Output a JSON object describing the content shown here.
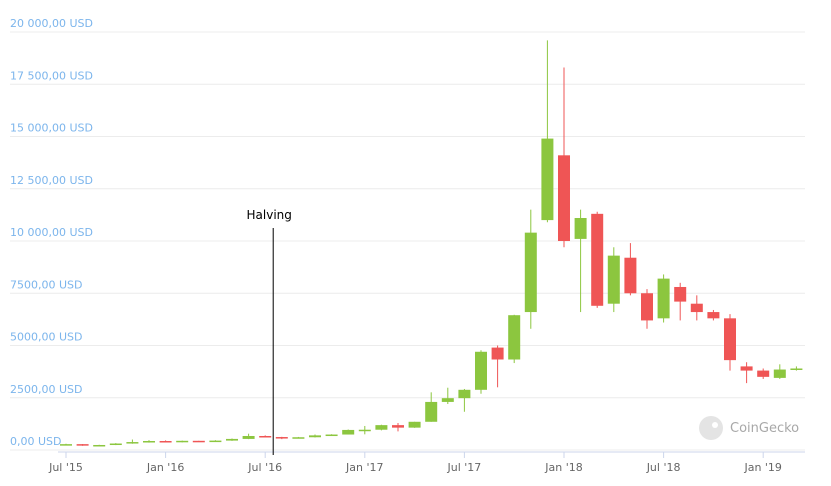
{
  "chart_data": {
    "type": "candlestick",
    "x": [
      "2015-07",
      "2015-08",
      "2015-09",
      "2015-10",
      "2015-11",
      "2015-12",
      "2016-01",
      "2016-02",
      "2016-03",
      "2016-04",
      "2016-05",
      "2016-06",
      "2016-07",
      "2016-08",
      "2016-09",
      "2016-10",
      "2016-11",
      "2016-12",
      "2017-01",
      "2017-02",
      "2017-03",
      "2017-04",
      "2017-05",
      "2017-06",
      "2017-07",
      "2017-08",
      "2017-09",
      "2017-10",
      "2017-11",
      "2017-12",
      "2018-01",
      "2018-02",
      "2018-03",
      "2018-04",
      "2018-05",
      "2018-06",
      "2018-07",
      "2018-08",
      "2018-09",
      "2018-10",
      "2018-11",
      "2018-12",
      "2019-01",
      "2019-02",
      "2019-03"
    ],
    "open": [
      260,
      280,
      230,
      240,
      310,
      380,
      430,
      370,
      440,
      415,
      450,
      530,
      670,
      620,
      575,
      610,
      700,
      740,
      960,
      970,
      1190,
      1070,
      1350,
      2300,
      2480,
      2880,
      4900,
      4330,
      6600,
      11000,
      14100,
      10100,
      11300,
      7000,
      9200,
      7500,
      6300,
      7800,
      7000,
      6600,
      6300,
      4000,
      3800,
      3450,
      3830
    ],
    "high": [
      300,
      285,
      250,
      330,
      500,
      470,
      460,
      450,
      440,
      470,
      550,
      780,
      700,
      630,
      625,
      740,
      755,
      980,
      1150,
      1210,
      1290,
      1350,
      2760,
      2980,
      2920,
      4770,
      5000,
      6470,
      11500,
      19600,
      18300,
      11500,
      11400,
      9700,
      9900,
      7700,
      8400,
      8000,
      7400,
      6700,
      6500,
      4200,
      3900,
      4100,
      4000
    ],
    "low": [
      250,
      200,
      220,
      235,
      300,
      350,
      360,
      365,
      395,
      410,
      435,
      520,
      600,
      520,
      570,
      600,
      690,
      740,
      750,
      940,
      890,
      1060,
      1350,
      2200,
      1830,
      2690,
      3000,
      4160,
      5800,
      10900,
      9700,
      6600,
      6800,
      6600,
      7400,
      5800,
      6100,
      6200,
      6200,
      6200,
      3800,
      3200,
      3400,
      3400,
      3800
    ],
    "close": [
      280,
      230,
      240,
      310,
      380,
      430,
      370,
      440,
      415,
      450,
      530,
      670,
      620,
      575,
      610,
      700,
      740,
      960,
      970,
      1190,
      1070,
      1350,
      2300,
      2480,
      2880,
      4700,
      4330,
      6450,
      10400,
      14900,
      10000,
      11100,
      6900,
      9300,
      7500,
      6200,
      8200,
      7100,
      6600,
      6300,
      4300,
      3800,
      3500,
      3850,
      3900
    ],
    "up_color": "#8cc63f",
    "down_color": "#ef5555",
    "ylim": [
      0,
      20000
    ],
    "yticks": [
      {
        "value": 0,
        "label": "0,00 USD"
      },
      {
        "value": 2500,
        "label": "2500,00 USD"
      },
      {
        "value": 5000,
        "label": "5000,00 USD"
      },
      {
        "value": 7500,
        "label": "7500,00 USD"
      },
      {
        "value": 10000,
        "label": "10 000,00 USD"
      },
      {
        "value": 12500,
        "label": "12 500,00 USD"
      },
      {
        "value": 15000,
        "label": "15 000,00 USD"
      },
      {
        "value": 17500,
        "label": "17 500,00 USD"
      },
      {
        "value": 20000,
        "label": "20 000,00 USD"
      }
    ],
    "xticks": [
      {
        "value": "2015-07",
        "label": "Jul '15"
      },
      {
        "value": "2016-01",
        "label": "Jan '16"
      },
      {
        "value": "2016-07",
        "label": "Jul '16"
      },
      {
        "value": "2017-01",
        "label": "Jan '17"
      },
      {
        "value": "2017-07",
        "label": "Jul '17"
      },
      {
        "value": "2018-01",
        "label": "Jan '18"
      },
      {
        "value": "2018-07",
        "label": "Jul '18"
      },
      {
        "value": "2019-01",
        "label": "Jan '19"
      }
    ],
    "grid": true,
    "annotations": [
      {
        "text": "Halving",
        "x": "2016-07"
      }
    ],
    "watermark": "CoinGecko"
  }
}
